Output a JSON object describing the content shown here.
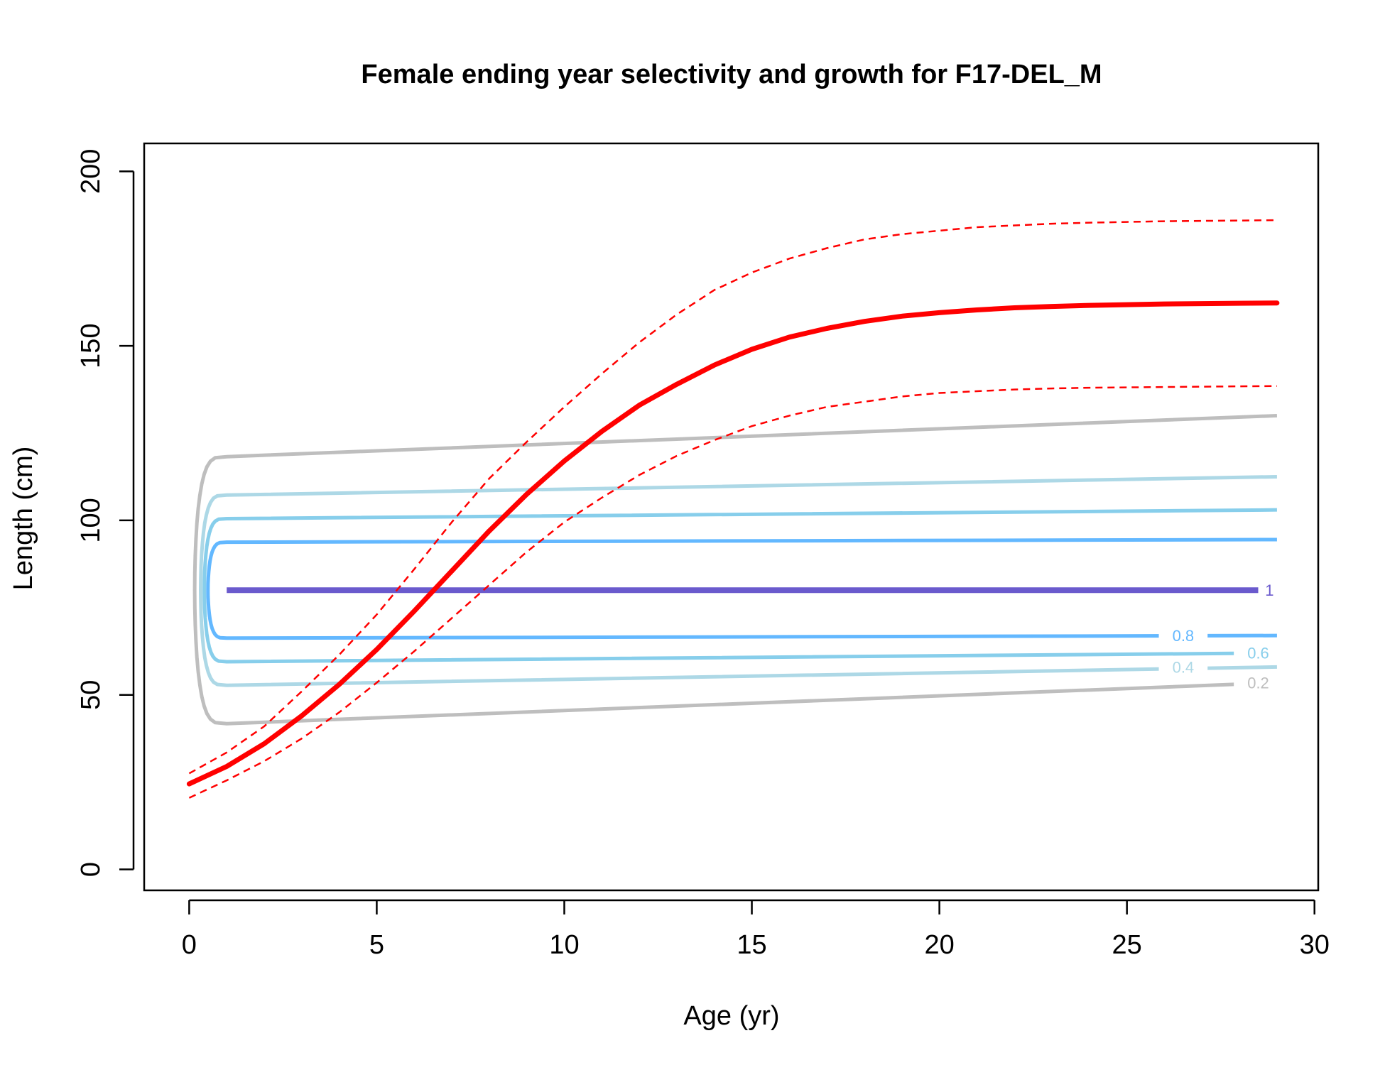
{
  "chart_data": {
    "type": "line",
    "title": "Female ending year selectivity and growth for F17-DEL_M",
    "xlabel": "Age (yr)",
    "ylabel": "Length (cm)",
    "xlim": [
      -1.2,
      30.1
    ],
    "ylim": [
      -6,
      208
    ],
    "x_ticks": [
      0,
      5,
      10,
      15,
      20,
      25,
      30
    ],
    "y_ticks": [
      0,
      50,
      100,
      150,
      200
    ],
    "grid": false,
    "legend": "none",
    "growth": {
      "color": "#ff0000",
      "x": [
        0,
        1,
        2,
        3,
        4,
        5,
        6,
        7,
        8,
        9,
        10,
        11,
        12,
        13,
        14,
        15,
        16,
        17,
        18,
        19,
        20,
        21,
        22,
        23,
        24,
        25,
        26,
        27,
        28,
        29
      ],
      "mean": [
        24.5,
        29.5,
        36,
        44,
        53,
        63,
        74,
        85.5,
        97,
        107.5,
        117,
        125.5,
        133,
        139,
        144.5,
        149,
        152.5,
        155,
        157,
        158.5,
        159.5,
        160.3,
        160.9,
        161.3,
        161.6,
        161.8,
        162,
        162.1,
        162.2,
        162.3
      ],
      "upper": [
        27.5,
        33.5,
        41,
        51,
        61.5,
        73,
        86,
        99.5,
        112,
        122.5,
        132.5,
        142,
        151,
        159,
        166,
        171,
        175,
        178,
        180.5,
        182,
        183,
        184,
        184.5,
        185,
        185.3,
        185.5,
        185.7,
        185.8,
        185.9,
        186
      ],
      "lower": [
        20.5,
        25.5,
        31,
        37.5,
        45,
        53.5,
        62.5,
        72,
        81.5,
        91,
        99.5,
        106.5,
        113,
        118.5,
        123,
        127,
        130,
        132.5,
        134,
        135.5,
        136.5,
        137,
        137.5,
        137.8,
        138,
        138.1,
        138.2,
        138.3,
        138.4,
        138.5
      ]
    },
    "selectivity_contours": [
      {
        "level": 1,
        "label": "1",
        "color": "#6a5acd",
        "lower": 80,
        "upper": 80,
        "width": 8
      },
      {
        "level": 0.8,
        "label": "0.8",
        "color": "#63b8ff",
        "lower": 67,
        "upper": 94.5,
        "width": 5
      },
      {
        "level": 0.6,
        "label": "0.6",
        "color": "#87ceeb",
        "lower": 62,
        "upper": 103,
        "width": 5
      },
      {
        "level": 0.4,
        "label": "0.4",
        "color": "#add8e6",
        "lower": 58,
        "upper": 112.5,
        "width": 5
      },
      {
        "level": 0.2,
        "label": "0.2",
        "color": "#bebebe",
        "lower": 53.5,
        "upper": 130,
        "width": 5
      }
    ]
  }
}
